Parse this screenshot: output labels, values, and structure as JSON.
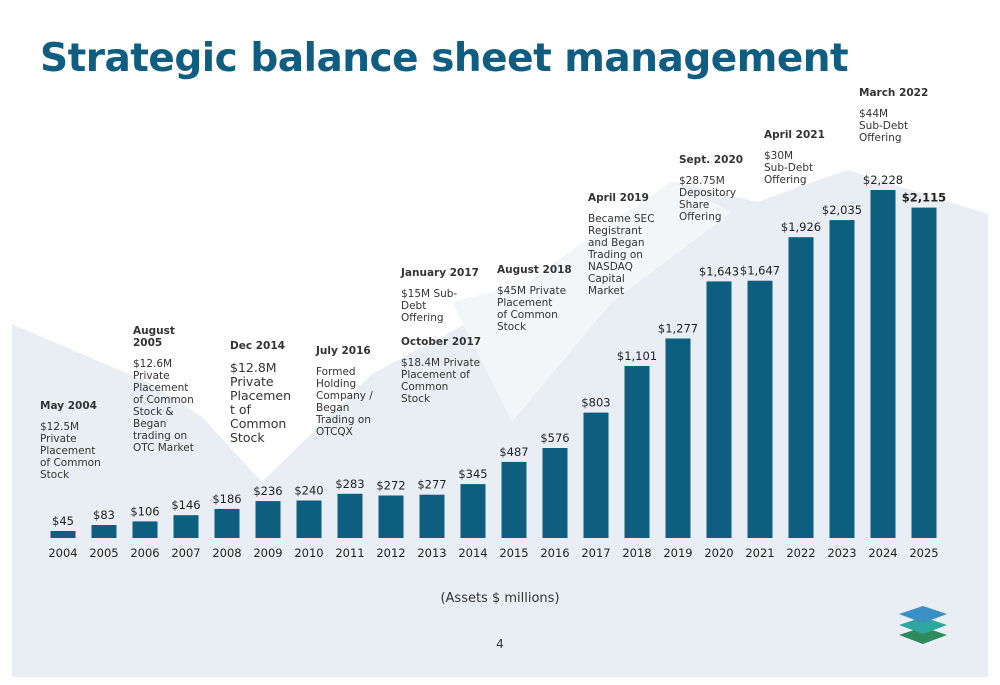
{
  "title": "Strategic balance sheet management",
  "caption": "(Assets $ millions)",
  "page_number": "4",
  "colors": {
    "bar": "#0e5e80",
    "title": "#0f5e82",
    "background_shape": "#e9eef4",
    "logo_top": "#3a8fc4",
    "logo_mid": "#2fa7a0",
    "logo_bottom": "#2e8a5a"
  },
  "icons": {
    "logo": "stacked-layers-logo-icon"
  },
  "annotations": [
    {
      "heading": "May 2004",
      "text": "$12.5M\nPrivate\nPlacement\nof Common\nStock"
    },
    {
      "heading": "August\n2005",
      "text": "$12.6M\nPrivate\nPlacement\nof Common\nStock &\nBegan\ntrading on\nOTC Market"
    },
    {
      "heading": "Dec 2014",
      "text": "$12.8M\nPrivate\nPlacemen\nt of\nCommon\nStock"
    },
    {
      "heading": "July 2016",
      "text": "Formed\nHolding\nCompany /\nBegan\nTrading on\nOTCQX"
    },
    {
      "heading": "January 2017",
      "text": "$15M Sub-\nDebt\nOffering"
    },
    {
      "heading": "October 2017",
      "text": "$18.4M Private\nPlacement of\nCommon\nStock"
    },
    {
      "heading": "August 2018",
      "text": "$45M Private\nPlacement\nof Common\nStock"
    },
    {
      "heading": "April 2019",
      "text": "Became SEC\nRegistrant\nand Began\nTrading on\nNASDAQ\nCapital\nMarket"
    },
    {
      "heading": "Sept. 2020",
      "text": "$28.75M\nDepository\nShare\nOffering"
    },
    {
      "heading": "April 2021",
      "text": "$30M\nSub-Debt\nOffering"
    },
    {
      "heading": "March 2022",
      "text": "$44M\nSub-Debt\nOffering"
    }
  ],
  "chart_data": {
    "type": "bar",
    "title": "Strategic balance sheet management",
    "xlabel": "(Assets $ millions)",
    "ylabel": "",
    "ylim": [
      0,
      2500
    ],
    "grid": false,
    "categories": [
      "2004",
      "2005",
      "2006",
      "2007",
      "2008",
      "2009",
      "2010",
      "2011",
      "2012",
      "2013",
      "2014",
      "2015",
      "2016",
      "2017",
      "2018",
      "2019",
      "2020",
      "2021",
      "2022",
      "2023",
      "2024",
      "2025"
    ],
    "values": [
      45,
      83,
      106,
      146,
      186,
      236,
      240,
      283,
      272,
      277,
      345,
      487,
      576,
      803,
      1101,
      1277,
      1643,
      1647,
      1926,
      2035,
      2228,
      2115
    ],
    "labels": [
      "$45",
      "$83",
      "$106",
      "$146",
      "$186",
      "$236",
      "$240",
      "$283",
      "$272",
      "$277",
      "$345",
      "$487",
      "$576",
      "$803",
      "$1,101",
      "$1,277",
      "$1,643",
      "$1,647",
      "$1,926",
      "$2,035",
      "$2,228",
      "$2,115"
    ],
    "bold_label_index": 21
  }
}
